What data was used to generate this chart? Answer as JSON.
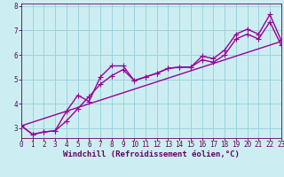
{
  "xlabel": "Windchill (Refroidissement éolien,°C)",
  "background_color": "#cceef2",
  "grid_color": "#99d4dc",
  "line_color": "#990099",
  "xlim": [
    0,
    23
  ],
  "ylim": [
    2.6,
    8.1
  ],
  "xticks": [
    0,
    1,
    2,
    3,
    4,
    5,
    6,
    7,
    8,
    9,
    10,
    11,
    12,
    13,
    14,
    15,
    16,
    17,
    18,
    19,
    20,
    21,
    22,
    23
  ],
  "yticks": [
    3,
    4,
    5,
    6,
    7,
    8
  ],
  "series1_y": [
    3.1,
    2.75,
    2.85,
    2.9,
    3.7,
    4.35,
    4.1,
    5.1,
    5.55,
    5.55,
    4.95,
    5.1,
    5.25,
    5.45,
    5.5,
    5.5,
    5.95,
    5.85,
    6.2,
    6.85,
    7.05,
    6.85,
    7.65,
    6.6
  ],
  "series2_y": [
    3.1,
    2.75,
    2.85,
    2.9,
    3.3,
    3.8,
    4.3,
    4.8,
    5.15,
    5.4,
    4.95,
    5.1,
    5.25,
    5.45,
    5.5,
    5.5,
    5.8,
    5.7,
    6.0,
    6.65,
    6.85,
    6.65,
    7.35,
    6.4
  ],
  "trend_y": [
    3.1,
    6.55
  ],
  "marker": "+",
  "markersize": 4,
  "linewidth": 1.0,
  "xlabel_fontsize": 6.5,
  "tick_fontsize": 5.5,
  "line_purple": "#990099",
  "spine_color": "#660066"
}
